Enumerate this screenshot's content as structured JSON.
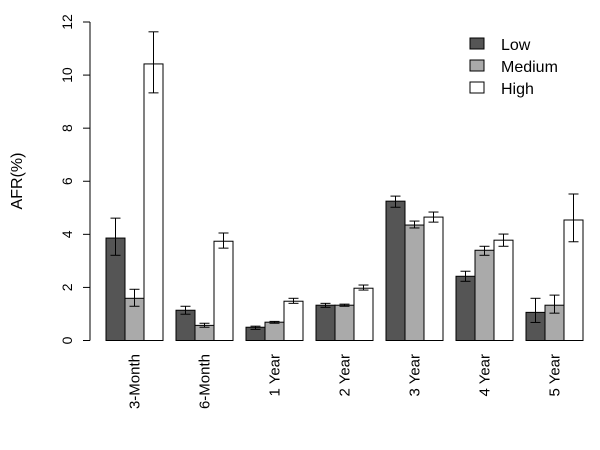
{
  "chart_data": {
    "type": "bar",
    "title": "",
    "xlabel": "",
    "ylabel": "AFR(%)",
    "ylim": [
      0,
      12
    ],
    "yticks": [
      "0",
      "2",
      "4",
      "6",
      "8",
      "10",
      "12"
    ],
    "grid": false,
    "legend_position": "top-right",
    "categories": [
      "3-Month",
      "6-Month",
      "1 Year",
      "2 Year",
      "3 Year",
      "4 Year",
      "5 Year"
    ],
    "series": [
      {
        "name": "Low",
        "color": "#555555",
        "values": [
          3.86,
          1.14,
          0.5,
          1.33,
          5.25,
          2.42,
          1.06
        ],
        "err_low": [
          3.21,
          0.99,
          0.42,
          1.25,
          5.02,
          2.23,
          0.68
        ],
        "err_high": [
          4.61,
          1.29,
          0.54,
          1.4,
          5.44,
          2.61,
          1.59
        ]
      },
      {
        "name": "Medium",
        "color": "#aaaaaa",
        "values": [
          1.59,
          0.57,
          0.69,
          1.33,
          4.35,
          3.4,
          1.33
        ],
        "err_low": [
          1.29,
          0.5,
          0.65,
          1.29,
          4.24,
          3.21,
          1.03
        ],
        "err_high": [
          1.93,
          0.65,
          0.72,
          1.37,
          4.5,
          3.55,
          1.71
        ]
      },
      {
        "name": "High",
        "color": "#ffffff",
        "values": [
          10.42,
          3.74,
          1.48,
          1.97,
          4.65,
          3.78,
          4.54
        ],
        "err_low": [
          9.33,
          3.48,
          1.4,
          1.9,
          4.46,
          3.55,
          3.72
        ],
        "err_high": [
          11.63,
          4.05,
          1.59,
          2.09,
          4.84,
          4.01,
          5.52
        ]
      }
    ]
  }
}
